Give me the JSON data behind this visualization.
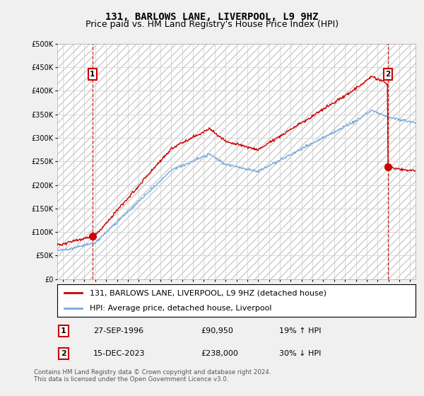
{
  "title": "131, BARLOWS LANE, LIVERPOOL, L9 9HZ",
  "subtitle": "Price paid vs. HM Land Registry's House Price Index (HPI)",
  "ylim": [
    0,
    500000
  ],
  "yticks": [
    0,
    50000,
    100000,
    150000,
    200000,
    250000,
    300000,
    350000,
    400000,
    450000,
    500000
  ],
  "ytick_labels": [
    "£0",
    "£50K",
    "£100K",
    "£150K",
    "£200K",
    "£250K",
    "£300K",
    "£350K",
    "£400K",
    "£450K",
    "£500K"
  ],
  "xlim_start": 1993.5,
  "xlim_end": 2026.5,
  "sale1_x": 1996.74,
  "sale1_y": 90950,
  "sale1_label": "1",
  "sale1_date": "27-SEP-1996",
  "sale1_price": "£90,950",
  "sale1_hpi": "19% ↑ HPI",
  "sale2_x": 2023.96,
  "sale2_y": 238000,
  "sale2_label": "2",
  "sale2_date": "15-DEC-2023",
  "sale2_price": "£238,000",
  "sale2_hpi": "30% ↓ HPI",
  "line_color_sales": "#cc0000",
  "line_color_hpi": "#7aaadd",
  "background_color": "#f0f0f0",
  "plot_bg_color": "#ffffff",
  "grid_color": "#cccccc",
  "legend_label_sales": "131, BARLOWS LANE, LIVERPOOL, L9 9HZ (detached house)",
  "legend_label_hpi": "HPI: Average price, detached house, Liverpool",
  "footnote": "Contains HM Land Registry data © Crown copyright and database right 2024.\nThis data is licensed under the Open Government Licence v3.0.",
  "title_fontsize": 10,
  "subtitle_fontsize": 9,
  "tick_fontsize": 7,
  "legend_fontsize": 8
}
